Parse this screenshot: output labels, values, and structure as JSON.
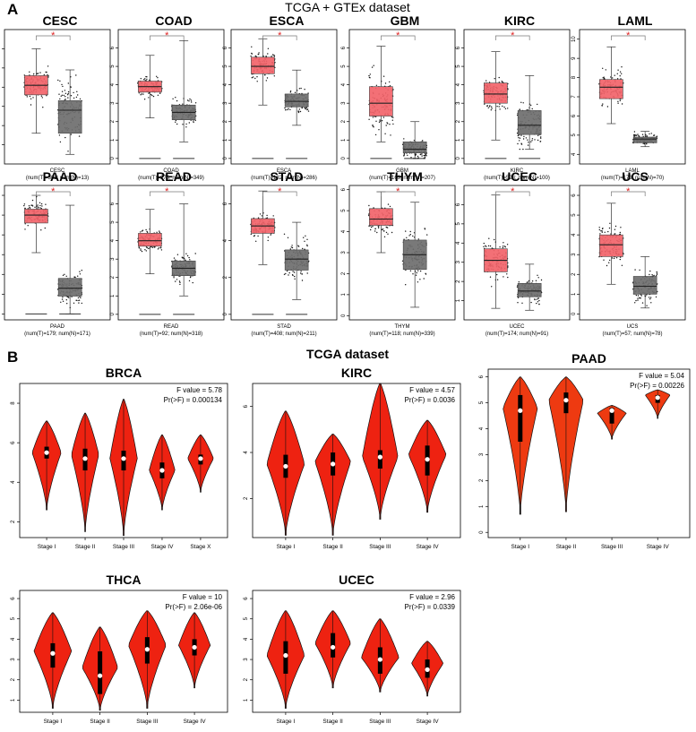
{
  "panel_a": {
    "letter": "A",
    "title": "TCGA + GTEx dataset",
    "colors": {
      "tumor": "#f2646a",
      "normal": "#6e6e6e",
      "star": "#e02020"
    }
  },
  "panel_b": {
    "letter": "B",
    "title": "TCGA  dataset",
    "colors": {
      "violin": "#ee2211",
      "violin_paad": "#ee3a11"
    }
  },
  "chart_data": [
    {
      "type": "box",
      "name": "CESC",
      "caption": "(num(T)=306; num(N)=13)",
      "ylim": [
        0,
        7
      ],
      "yticks": [
        1,
        2,
        3,
        4,
        5,
        6
      ],
      "sig": "*",
      "tumor": {
        "min": 1.6,
        "q1": 3.6,
        "median": 4.1,
        "q3": 4.6,
        "max": 6.0
      },
      "normal": {
        "min": 0.5,
        "q1": 1.6,
        "median": 2.8,
        "q3": 3.3,
        "max": 4.9
      }
    },
    {
      "type": "box",
      "name": "COAD",
      "caption": "(num(T)=275; num(N)=349)",
      "ylim": [
        -0.3,
        7
      ],
      "yticks": [
        0,
        1,
        2,
        3,
        4,
        5,
        6
      ],
      "sig": "*",
      "tumor": {
        "min": 2.2,
        "q1": 3.6,
        "median": 3.9,
        "q3": 4.2,
        "max": 5.6
      },
      "normal": {
        "min": 0.9,
        "q1": 2.1,
        "median": 2.5,
        "q3": 2.9,
        "max": 6.4
      },
      "zero_line": true
    },
    {
      "type": "box",
      "name": "ESCA",
      "caption": "(num(T)=182; num(N)=286)",
      "ylim": [
        -0.3,
        7
      ],
      "yticks": [
        0,
        1,
        2,
        3,
        4,
        5,
        6
      ],
      "sig": "*",
      "tumor": {
        "min": 2.9,
        "q1": 4.6,
        "median": 5.0,
        "q3": 5.5,
        "max": 6.5
      },
      "normal": {
        "min": 1.8,
        "q1": 2.8,
        "median": 3.1,
        "q3": 3.5,
        "max": 4.8
      },
      "zero_line": true
    },
    {
      "type": "box",
      "name": "GBM",
      "caption": "(num(T)=163; num(N)=207)",
      "ylim": [
        -0.3,
        7
      ],
      "yticks": [
        0,
        1,
        2,
        3,
        4,
        5,
        6
      ],
      "sig": "*",
      "tumor": {
        "min": 0.9,
        "q1": 2.3,
        "median": 3.0,
        "q3": 3.9,
        "max": 6.1
      },
      "normal": {
        "min": 0.0,
        "q1": 0.3,
        "median": 0.5,
        "q3": 0.9,
        "max": 2.0
      },
      "zero_line": true
    },
    {
      "type": "box",
      "name": "KIRC",
      "caption": "(num(T)=523; num(N)=100)",
      "ylim": [
        -0.3,
        7
      ],
      "yticks": [
        0,
        1,
        2,
        3,
        4,
        5,
        6
      ],
      "sig": "*",
      "tumor": {
        "min": 1.0,
        "q1": 3.0,
        "median": 3.5,
        "q3": 4.1,
        "max": 5.8
      },
      "normal": {
        "min": 0.5,
        "q1": 1.3,
        "median": 1.8,
        "q3": 2.6,
        "max": 4.5
      },
      "zero_line": true
    },
    {
      "type": "box",
      "name": "LAML",
      "caption": "(num(T)=173; num(N)=70)",
      "ylim": [
        3.5,
        10.5
      ],
      "yticks": [
        4,
        5,
        6,
        7,
        8,
        9,
        10
      ],
      "sig": "*",
      "tumor": {
        "min": 5.6,
        "q1": 6.9,
        "median": 7.5,
        "q3": 7.9,
        "max": 9.6
      },
      "normal": {
        "min": 4.4,
        "q1": 4.6,
        "median": 4.8,
        "q3": 4.9,
        "max": 5.2
      }
    },
    {
      "type": "box",
      "name": "PAAD",
      "caption": "(num(T)=179; num(N)=171)",
      "ylim": [
        -0.3,
        6.5
      ],
      "yticks": [
        0,
        1,
        2,
        3,
        4,
        5,
        6
      ],
      "sig": "*",
      "tumor": {
        "min": 3.1,
        "q1": 4.6,
        "median": 5.0,
        "q3": 5.3,
        "max": 6.0
      },
      "normal": {
        "min": 0.0,
        "q1": 0.9,
        "median": 1.3,
        "q3": 1.8,
        "max": 5.5
      },
      "zero_line": true
    },
    {
      "type": "box",
      "name": "READ",
      "caption": "(num(T)=92; num(N)=318)",
      "ylim": [
        -0.3,
        7
      ],
      "yticks": [
        0,
        1,
        2,
        3,
        4,
        5,
        6
      ],
      "sig": "*",
      "tumor": {
        "min": 2.2,
        "q1": 3.7,
        "median": 4.0,
        "q3": 4.4,
        "max": 5.7
      },
      "normal": {
        "min": 1.0,
        "q1": 2.1,
        "median": 2.5,
        "q3": 2.9,
        "max": 6.0
      },
      "zero_line": true
    },
    {
      "type": "box",
      "name": "STAD",
      "caption": "(num(T)=408; num(N)=211)",
      "ylim": [
        -0.3,
        7
      ],
      "yticks": [
        0,
        2,
        4,
        6
      ],
      "sig": "*",
      "tumor": {
        "min": 2.7,
        "q1": 4.4,
        "median": 4.8,
        "q3": 5.2,
        "max": 6.7
      },
      "normal": {
        "min": 0.8,
        "q1": 2.4,
        "median": 3.0,
        "q3": 3.5,
        "max": 5.0
      },
      "zero_line": true
    },
    {
      "type": "box",
      "name": "THYM",
      "caption": "(num(T)=118; num(N)=339)",
      "ylim": [
        -0.2,
        6.2
      ],
      "yticks": [
        0,
        1,
        2,
        3,
        4,
        5,
        6
      ],
      "sig": "*",
      "tumor": {
        "min": 3.0,
        "q1": 4.3,
        "median": 4.6,
        "q3": 5.1,
        "max": 5.9
      },
      "normal": {
        "min": 0.4,
        "q1": 2.2,
        "median": 2.9,
        "q3": 3.6,
        "max": 5.4
      }
    },
    {
      "type": "box",
      "name": "UCEC",
      "caption": "(num(T)=174; num(N)=91)",
      "ylim": [
        0,
        7
      ],
      "yticks": [
        1,
        2,
        3,
        4,
        5,
        6
      ],
      "sig": "*",
      "tumor": {
        "min": 0.6,
        "q1": 2.5,
        "median": 3.1,
        "q3": 3.7,
        "max": 6.5
      },
      "normal": {
        "min": 0.5,
        "q1": 1.2,
        "median": 1.5,
        "q3": 1.9,
        "max": 2.9
      }
    },
    {
      "type": "box",
      "name": "UCS",
      "caption": "(num(T)=57; num(N)=78)",
      "ylim": [
        -0.3,
        6.5
      ],
      "yticks": [
        0,
        1,
        2,
        3,
        4,
        5,
        6
      ],
      "sig": "*",
      "tumor": {
        "min": 1.5,
        "q1": 2.9,
        "median": 3.5,
        "q3": 4.0,
        "max": 5.6
      },
      "normal": {
        "min": 0.3,
        "q1": 1.0,
        "median": 1.4,
        "q3": 1.9,
        "max": 2.9
      }
    },
    {
      "type": "violin",
      "name": "BRCA",
      "fvalue": "F value = 5.78",
      "pr": "Pr(>F) = 0.000134",
      "ylim": [
        1.2,
        9.0
      ],
      "yticks": [
        2,
        4,
        6,
        8
      ],
      "categories": [
        "Stage I",
        "Stage II",
        "Stage III",
        "Stage IV",
        "Stage X"
      ],
      "groups": [
        {
          "min": 2.6,
          "max": 7.1,
          "median": 5.5,
          "q1": 5.2,
          "q3": 5.8,
          "peak": 5.5,
          "width": 0.9
        },
        {
          "min": 1.5,
          "max": 7.5,
          "median": 5.2,
          "q1": 4.6,
          "q3": 5.7,
          "peak": 5.4,
          "width": 0.85
        },
        {
          "min": 1.3,
          "max": 8.2,
          "median": 5.2,
          "q1": 4.6,
          "q3": 5.6,
          "peak": 5.2,
          "width": 0.85
        },
        {
          "min": 2.6,
          "max": 6.4,
          "median": 4.6,
          "q1": 4.2,
          "q3": 5.0,
          "peak": 4.6,
          "width": 0.8
        },
        {
          "min": 3.5,
          "max": 6.4,
          "median": 5.2,
          "q1": 4.9,
          "q3": 5.4,
          "peak": 5.2,
          "width": 0.8
        }
      ]
    },
    {
      "type": "violin",
      "name": "KIRC",
      "fvalue": "F value = 4.57",
      "pr": "Pr(>F) = 0.0036",
      "ylim": [
        0.3,
        7.0
      ],
      "yticks": [
        2,
        4,
        6
      ],
      "categories": [
        "Stage I",
        "Stage II",
        "Stage III",
        "Stage IV"
      ],
      "groups": [
        {
          "min": 0.4,
          "max": 5.8,
          "median": 3.4,
          "q1": 2.9,
          "q3": 3.9,
          "peak": 3.5,
          "width": 0.95
        },
        {
          "min": 0.4,
          "max": 4.8,
          "median": 3.5,
          "q1": 3.0,
          "q3": 4.0,
          "peak": 3.6,
          "width": 0.9
        },
        {
          "min": 1.1,
          "max": 7.0,
          "median": 3.8,
          "q1": 3.3,
          "q3": 4.1,
          "peak": 3.8,
          "width": 0.9
        },
        {
          "min": 1.4,
          "max": 5.4,
          "median": 3.7,
          "q1": 3.0,
          "q3": 4.3,
          "peak": 3.9,
          "width": 0.95
        }
      ]
    },
    {
      "type": "violin",
      "name": "PAAD",
      "fvalue": "F value = 5.04",
      "pr": "Pr(>F) = 0.00226",
      "ylim": [
        -0.2,
        6.3
      ],
      "yticks": [
        0,
        1,
        2,
        3,
        4,
        5,
        6
      ],
      "categories": [
        "Stage I",
        "Stage II",
        "Stage III",
        "Stage IV"
      ],
      "groups": [
        {
          "min": 0.7,
          "max": 6.0,
          "median": 4.7,
          "q1": 3.5,
          "q3": 5.3,
          "peak": 4.8,
          "width": 0.9
        },
        {
          "min": 0.8,
          "max": 6.0,
          "median": 5.1,
          "q1": 4.6,
          "q3": 5.4,
          "peak": 5.1,
          "width": 0.9
        },
        {
          "min": 3.6,
          "max": 4.9,
          "median": 4.7,
          "q1": 4.2,
          "q3": 4.8,
          "peak": 4.6,
          "width": 0.75
        },
        {
          "min": 4.4,
          "max": 5.5,
          "median": 5.2,
          "q1": 5.0,
          "q3": 5.3,
          "peak": 5.3,
          "width": 0.65
        }
      ]
    },
    {
      "type": "violin",
      "name": "THCA",
      "fvalue": "F value = 10",
      "pr": "Pr(>F) = 2.06e-06",
      "ylim": [
        0.4,
        6.4
      ],
      "yticks": [
        1,
        2,
        3,
        4,
        5,
        6
      ],
      "categories": [
        "Stage I",
        "Stage II",
        "Stage III",
        "Stage IV"
      ],
      "groups": [
        {
          "min": 0.6,
          "max": 5.3,
          "median": 3.3,
          "q1": 2.6,
          "q3": 3.8,
          "peak": 3.4,
          "width": 0.95
        },
        {
          "min": 0.5,
          "max": 4.6,
          "median": 2.2,
          "q1": 1.3,
          "q3": 3.4,
          "peak": 2.6,
          "width": 0.9
        },
        {
          "min": 0.6,
          "max": 5.4,
          "median": 3.5,
          "q1": 2.8,
          "q3": 4.1,
          "peak": 3.7,
          "width": 0.95
        },
        {
          "min": 1.6,
          "max": 5.3,
          "median": 3.6,
          "q1": 3.2,
          "q3": 4.0,
          "peak": 3.7,
          "width": 0.8
        }
      ]
    },
    {
      "type": "violin",
      "name": "UCEC",
      "fvalue": "F value = 2.96",
      "pr": "Pr(>F) = 0.0339",
      "ylim": [
        0.4,
        6.4
      ],
      "yticks": [
        1,
        2,
        3,
        4,
        5,
        6
      ],
      "categories": [
        "Stage I",
        "Stage II",
        "Stage III",
        "Stage IV"
      ],
      "groups": [
        {
          "min": 0.6,
          "max": 5.4,
          "median": 3.2,
          "q1": 2.3,
          "q3": 3.9,
          "peak": 3.2,
          "width": 0.95
        },
        {
          "min": 1.6,
          "max": 5.4,
          "median": 3.6,
          "q1": 3.1,
          "q3": 4.3,
          "peak": 3.8,
          "width": 0.9
        },
        {
          "min": 1.4,
          "max": 5.0,
          "median": 3.0,
          "q1": 2.3,
          "q3": 3.6,
          "peak": 3.1,
          "width": 0.95
        },
        {
          "min": 1.2,
          "max": 3.9,
          "median": 2.5,
          "q1": 2.1,
          "q3": 3.0,
          "peak": 2.8,
          "width": 0.8
        }
      ]
    }
  ]
}
